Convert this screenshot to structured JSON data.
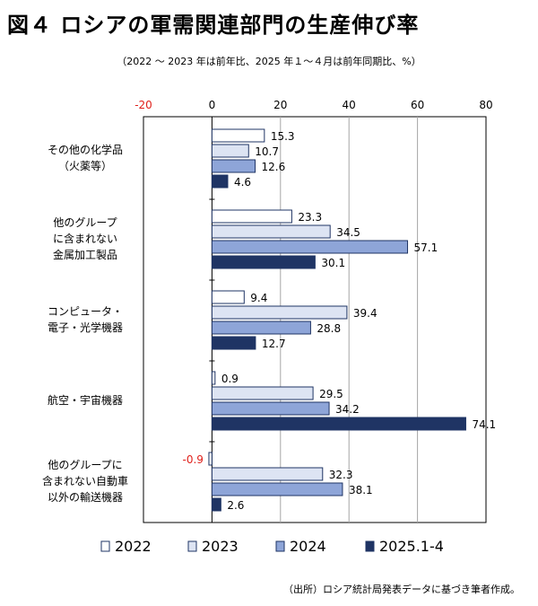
{
  "header": {
    "title": "図４ ロシアの軍需関連部門の生産伸び率",
    "subtitle": "（2022 ～ 2023 年は前年比、2025 年１～４月は前年同期比、%）"
  },
  "footer": {
    "source": "（出所）ロシア統計局発表データに基づき筆者作成。"
  },
  "chart_data": {
    "type": "bar",
    "orientation": "horizontal",
    "xlim": [
      -20,
      80
    ],
    "xticks": [
      -20,
      0,
      20,
      40,
      60,
      80
    ],
    "negative_tick_color": "#e0201b",
    "grid": true,
    "legend_position": "bottom",
    "categories": [
      [
        "その他の化学品",
        "（火薬等）"
      ],
      [
        "他のグループ",
        "に含まれない",
        "金属加工製品"
      ],
      [
        "コンピュータ・",
        "電子・光学機器"
      ],
      [
        "航空・宇宙機器"
      ],
      [
        "他のグループに",
        "含まれない自動車",
        "以外の輸送機器"
      ]
    ],
    "series": [
      {
        "name": "2022",
        "color": "#ffffff",
        "values": [
          15.3,
          23.3,
          9.4,
          0.9,
          -0.9
        ]
      },
      {
        "name": "2023",
        "color": "#dde4f3",
        "values": [
          10.7,
          34.5,
          39.4,
          29.5,
          32.3
        ]
      },
      {
        "name": "2024",
        "color": "#8ea5d8",
        "values": [
          12.6,
          57.1,
          28.8,
          34.2,
          38.1
        ]
      },
      {
        "name": "2025.1-4",
        "color": "#1f3464",
        "values": [
          4.6,
          30.1,
          12.7,
          74.1,
          2.6
        ]
      }
    ],
    "data_labels": [
      [
        "15.3",
        "10.7",
        "12.6",
        "4.6"
      ],
      [
        "23.3",
        "34.5",
        "57.1",
        "30.1"
      ],
      [
        "9.4",
        "39.4",
        "28.8",
        "12.7"
      ],
      [
        "0.9",
        "29.5",
        "34.2",
        "74.1"
      ],
      [
        "-0.9",
        "32.3",
        "38.1",
        "2.6"
      ]
    ],
    "bar_edge_color": "#1f3464",
    "negative_label_color": "#e0201b",
    "inside_label_color": "#ffffff"
  }
}
